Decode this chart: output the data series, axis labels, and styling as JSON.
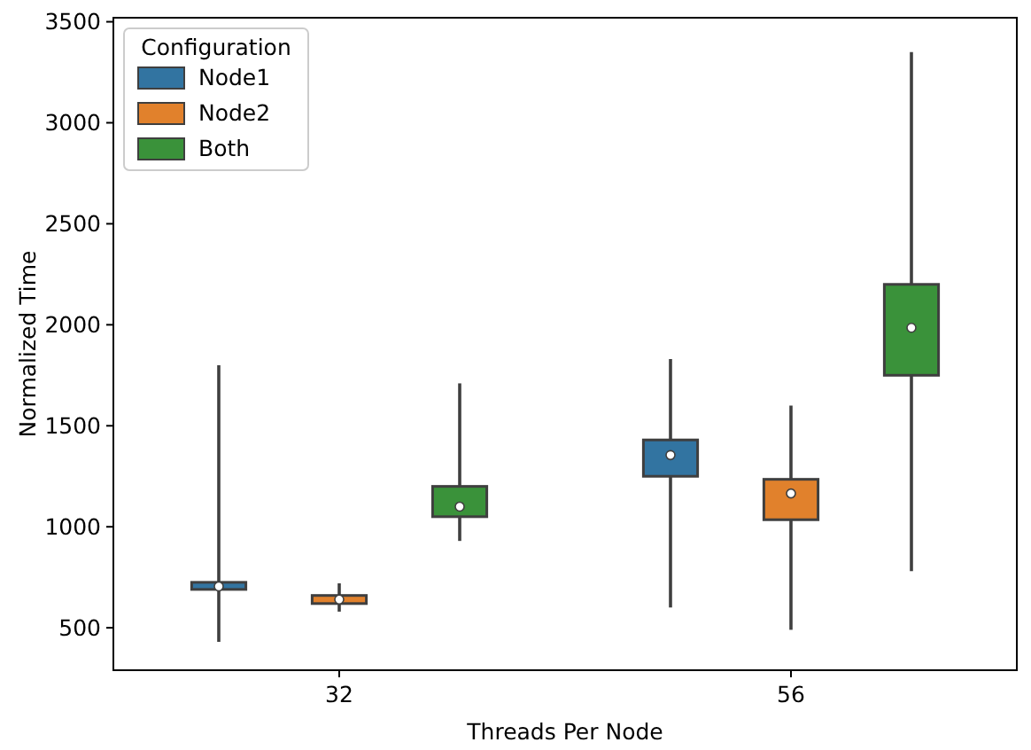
{
  "chart_data": {
    "type": "box",
    "xlabel": "Threads Per Node",
    "ylabel": "Normalized Time",
    "legend_title": "Configuration",
    "legend": "top left",
    "categories": [
      "32",
      "56"
    ],
    "ylim": [
      290,
      3520
    ],
    "yticks": [
      500,
      1000,
      1500,
      2000,
      2500,
      3000,
      3500
    ],
    "series": [
      {
        "name": "Node1",
        "color": "#3274a1",
        "boxes": [
          {
            "low": 430,
            "q1": 690,
            "median": 705,
            "q3": 725,
            "high": 1800
          },
          {
            "low": 600,
            "q1": 1250,
            "median": 1355,
            "q3": 1430,
            "high": 1830
          }
        ]
      },
      {
        "name": "Node2",
        "color": "#e1812c",
        "boxes": [
          {
            "low": 580,
            "q1": 620,
            "median": 640,
            "q3": 660,
            "high": 720
          },
          {
            "low": 490,
            "q1": 1035,
            "median": 1165,
            "q3": 1235,
            "high": 1600
          }
        ]
      },
      {
        "name": "Both",
        "color": "#3a923a",
        "boxes": [
          {
            "low": 930,
            "q1": 1050,
            "median": 1100,
            "q3": 1200,
            "high": 1710
          },
          {
            "low": 780,
            "q1": 1750,
            "median": 1985,
            "q3": 2200,
            "high": 3350
          }
        ]
      }
    ]
  }
}
